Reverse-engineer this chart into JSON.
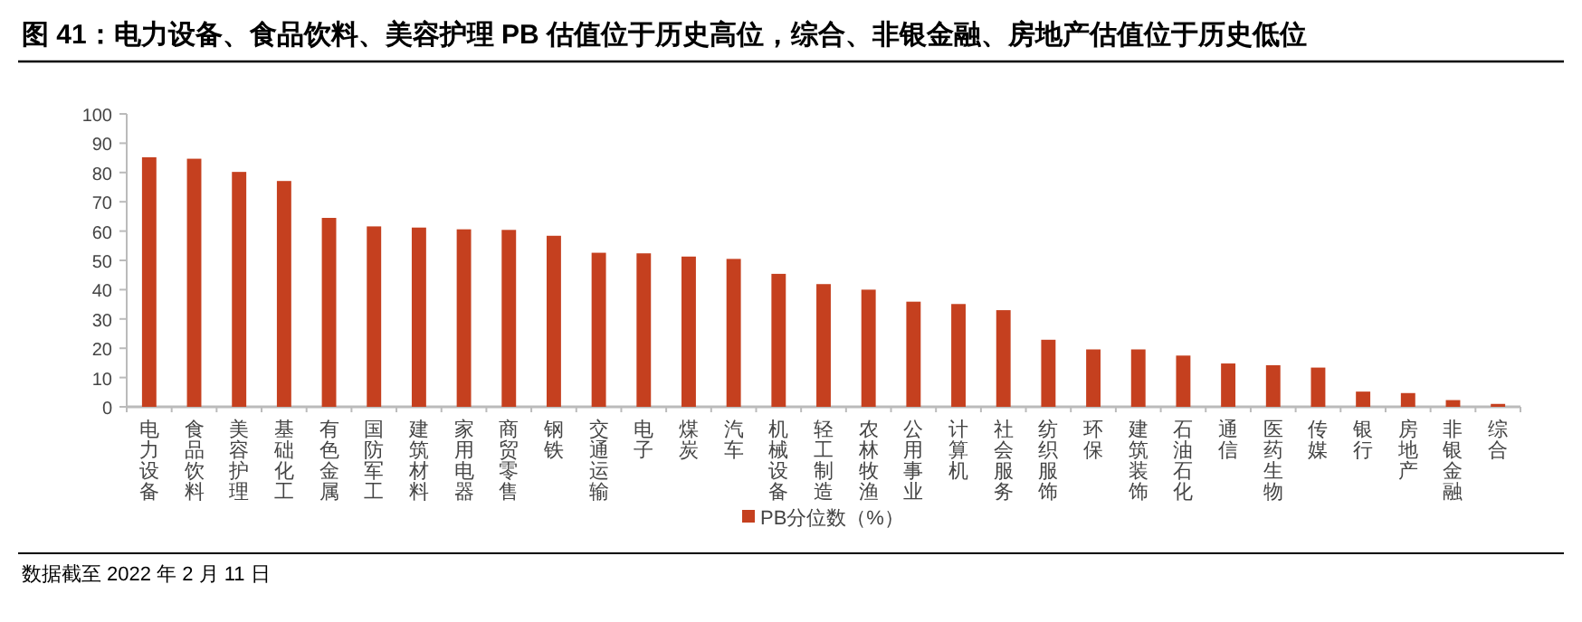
{
  "chart_data": {
    "type": "bar",
    "title": "图 41：电力设备、食品饮料、美容护理 PB 估值位于历史高位，综合、非银金融、房地产估值位于历史低位",
    "categories": [
      "电力设备",
      "食品饮料",
      "美容护理",
      "基础化工",
      "有色金属",
      "国防军工",
      "建筑材料",
      "家用电器",
      "商贸零售",
      "钢铁",
      "交通运输",
      "电子",
      "煤炭",
      "汽车",
      "机械设备",
      "轻工制造",
      "农林牧渔",
      "公用事业",
      "计算机",
      "社会服务",
      "纺织服饰",
      "环保",
      "建筑装饰",
      "石油石化",
      "通信",
      "医药生物",
      "传媒",
      "银行",
      "房地产",
      "非银金融",
      "综合"
    ],
    "series": [
      {
        "name": "PB分位数（%）",
        "color": "#c5401f",
        "values": [
          85.2,
          84.7,
          80.2,
          77.1,
          64.5,
          61.6,
          61.2,
          60.6,
          60.4,
          58.4,
          52.6,
          52.4,
          51.3,
          50.5,
          45.4,
          41.9,
          40.0,
          35.9,
          35.1,
          33.0,
          22.9,
          19.6,
          19.6,
          17.5,
          14.8,
          14.2,
          13.4,
          5.2,
          4.7,
          2.3,
          1.0
        ]
      }
    ],
    "ylim": [
      0,
      100
    ],
    "yticks": [
      0,
      10,
      20,
      30,
      40,
      50,
      60,
      70,
      80,
      90,
      100
    ],
    "grid": false,
    "legend": "bottom",
    "annotations": [
      "数据截至 2022 年 2 月 11 日"
    ]
  }
}
